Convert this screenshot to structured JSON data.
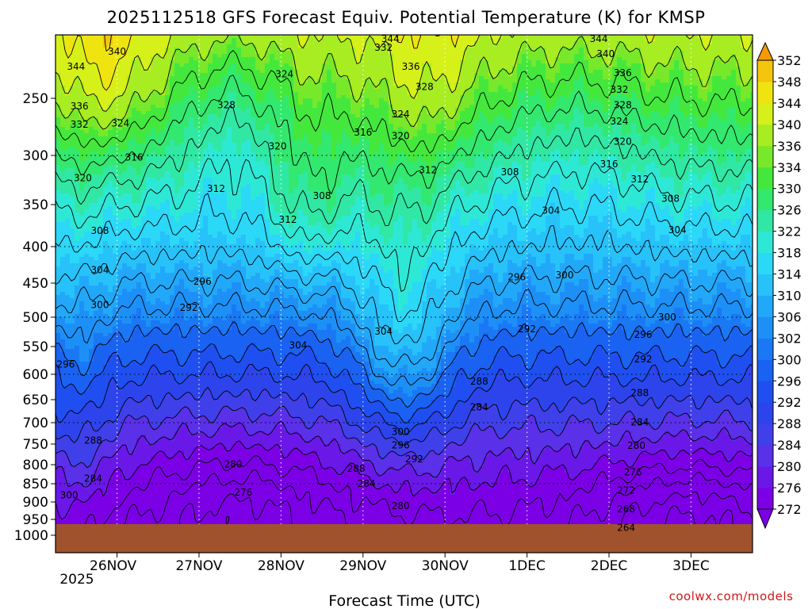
{
  "chart_data": {
    "type": "heatmap",
    "title": "2025112518 GFS Forecast Equiv. Potential Temperature (K) for KMSP",
    "xlabel": "Forecast Time (UTC)",
    "ylabel": "",
    "credit": "coolwx.com/models",
    "y_axis": {
      "scale": "pressure (inverted, log-like)",
      "range": [
        1000,
        200
      ],
      "ticks": [
        250,
        300,
        350,
        400,
        450,
        500,
        550,
        600,
        650,
        700,
        750,
        800,
        850,
        900,
        950,
        1000
      ],
      "tick_labels": [
        "250",
        "300",
        "350",
        "400",
        "450",
        "500",
        "550",
        "600",
        "650",
        "700",
        "750",
        "800",
        "850",
        "900",
        "950",
        "1000"
      ],
      "gridlines": [
        300,
        400,
        500,
        600,
        700,
        850
      ]
    },
    "x_axis": {
      "range_hours": [
        -12,
        192
      ],
      "ticks_hours": [
        6,
        30,
        54,
        78,
        102,
        126,
        150,
        174
      ],
      "tick_labels": [
        "26NOV",
        "27NOV",
        "28NOV",
        "29NOV",
        "30NOV",
        "1DEC",
        "2DEC",
        "3DEC"
      ],
      "sub_label": "2025",
      "vertical_grid": "dotted at each date tick"
    },
    "colorbar": {
      "levels": [
        272,
        276,
        280,
        284,
        288,
        292,
        296,
        300,
        302,
        306,
        310,
        314,
        318,
        322,
        326,
        330,
        334,
        336,
        340,
        344,
        348,
        352
      ],
      "tick_labels": [
        "272",
        "276",
        "280",
        "284",
        "288",
        "292",
        "296",
        "300",
        "302",
        "306",
        "310",
        "314",
        "318",
        "322",
        "326",
        "330",
        "334",
        "336",
        "340",
        "344",
        "348",
        "352"
      ],
      "colors": [
        "#7b00e6",
        "#6a18e8",
        "#5a30e8",
        "#4040ea",
        "#2d44ec",
        "#1f4ff0",
        "#1a62f2",
        "#1a78f5",
        "#1d90f7",
        "#22a8f9",
        "#27c2fa",
        "#2bd8f8",
        "#2ee8d6",
        "#30e8a4",
        "#33e86e",
        "#44e83c",
        "#78e82a",
        "#a8ec22",
        "#d6f01a",
        "#f0e410",
        "#f5c40c",
        "#f59a06"
      ]
    },
    "contour_interval_K": 4,
    "contour_labels": [
      {
        "value": 340,
        "hour": 6,
        "p": 213
      },
      {
        "value": 344,
        "hour": -6,
        "p": 225
      },
      {
        "value": 336,
        "hour": -5,
        "p": 257
      },
      {
        "value": 332,
        "hour": -5,
        "p": 273
      },
      {
        "value": 324,
        "hour": 7,
        "p": 272
      },
      {
        "value": 328,
        "hour": 38,
        "p": 256
      },
      {
        "value": 324,
        "hour": 55,
        "p": 231
      },
      {
        "value": 332,
        "hour": 84,
        "p": 210
      },
      {
        "value": 344,
        "hour": 86,
        "p": 203
      },
      {
        "value": 336,
        "hour": 92,
        "p": 225
      },
      {
        "value": 328,
        "hour": 96,
        "p": 241
      },
      {
        "value": 324,
        "hour": 89,
        "p": 264
      },
      {
        "value": 320,
        "hour": 89,
        "p": 283
      },
      {
        "value": 316,
        "hour": 78,
        "p": 280
      },
      {
        "value": 320,
        "hour": 53,
        "p": 292
      },
      {
        "value": 316,
        "hour": 11,
        "p": 302
      },
      {
        "value": 320,
        "hour": -4,
        "p": 323
      },
      {
        "value": 312,
        "hour": 35,
        "p": 334
      },
      {
        "value": 312,
        "hour": 56,
        "p": 368
      },
      {
        "value": 308,
        "hour": 66,
        "p": 341
      },
      {
        "value": 312,
        "hour": 97,
        "p": 315
      },
      {
        "value": 308,
        "hour": 121,
        "p": 317
      },
      {
        "value": 304,
        "hour": 133,
        "p": 357
      },
      {
        "value": 344,
        "hour": 147,
        "p": 203
      },
      {
        "value": 340,
        "hour": 149,
        "p": 215
      },
      {
        "value": 336,
        "hour": 154,
        "p": 230
      },
      {
        "value": 332,
        "hour": 153,
        "p": 243
      },
      {
        "value": 328,
        "hour": 154,
        "p": 256
      },
      {
        "value": 324,
        "hour": 153,
        "p": 270
      },
      {
        "value": 320,
        "hour": 154,
        "p": 288
      },
      {
        "value": 316,
        "hour": 150,
        "p": 309
      },
      {
        "value": 312,
        "hour": 159,
        "p": 324
      },
      {
        "value": 308,
        "hour": 168,
        "p": 344
      },
      {
        "value": 304,
        "hour": 170,
        "p": 380
      },
      {
        "value": 308,
        "hour": 1,
        "p": 381
      },
      {
        "value": 304,
        "hour": 1,
        "p": 432
      },
      {
        "value": 300,
        "hour": 1,
        "p": 482
      },
      {
        "value": 296,
        "hour": 31,
        "p": 448
      },
      {
        "value": 292,
        "hour": 27,
        "p": 486
      },
      {
        "value": 296,
        "hour": -9,
        "p": 582
      },
      {
        "value": 304,
        "hour": 59,
        "p": 548
      },
      {
        "value": 304,
        "hour": 84,
        "p": 524
      },
      {
        "value": 296,
        "hour": 123,
        "p": 442
      },
      {
        "value": 300,
        "hour": 137,
        "p": 439
      },
      {
        "value": 292,
        "hour": 126,
        "p": 520
      },
      {
        "value": 300,
        "hour": 167,
        "p": 500
      },
      {
        "value": 296,
        "hour": 160,
        "p": 530
      },
      {
        "value": 292,
        "hour": 160,
        "p": 573
      },
      {
        "value": 288,
        "hour": 112,
        "p": 614
      },
      {
        "value": 284,
        "hour": 112,
        "p": 666
      },
      {
        "value": 288,
        "hour": 159,
        "p": 637
      },
      {
        "value": 284,
        "hour": 159,
        "p": 699
      },
      {
        "value": 280,
        "hour": 158,
        "p": 754
      },
      {
        "value": 276,
        "hour": 157,
        "p": 820
      },
      {
        "value": 272,
        "hour": 155,
        "p": 869
      },
      {
        "value": 268,
        "hour": 155,
        "p": 921
      },
      {
        "value": 264,
        "hour": 155,
        "p": 976
      },
      {
        "value": 300,
        "hour": 89,
        "p": 721
      },
      {
        "value": 296,
        "hour": 89,
        "p": 753
      },
      {
        "value": 292,
        "hour": 93,
        "p": 787
      },
      {
        "value": 288,
        "hour": 76,
        "p": 810
      },
      {
        "value": 284,
        "hour": 79,
        "p": 850
      },
      {
        "value": 280,
        "hour": 89,
        "p": 911
      },
      {
        "value": 280,
        "hour": 40,
        "p": 799
      },
      {
        "value": 276,
        "hour": 43,
        "p": 874
      },
      {
        "value": 288,
        "hour": -1,
        "p": 742
      },
      {
        "value": 284,
        "hour": -1,
        "p": 836
      },
      {
        "value": 300,
        "hour": -8,
        "p": 882
      }
    ],
    "ground_color": "#a0522d",
    "surface_pressure": 965,
    "plot_background_note": "filled contour field: low (272 K) violet near surface, high (352 K) orange aloft"
  }
}
